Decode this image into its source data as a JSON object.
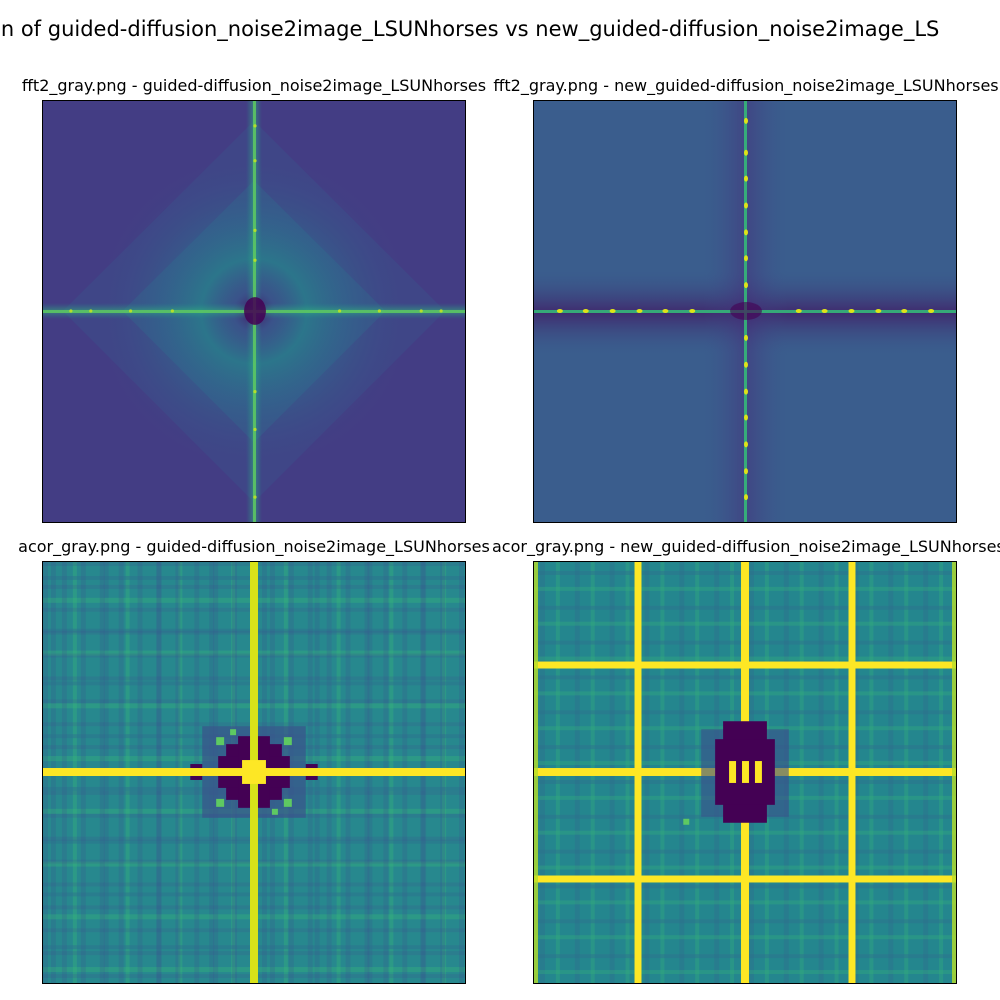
{
  "figure": {
    "suptitle": "on of guided-diffusion_noise2image_LSUNhorses vs new_guided-diffusion_noise2image_LS"
  },
  "colors": {
    "viridis_dark": "#440154",
    "viridis_blue": "#3b528b",
    "viridis_teal": "#21918c",
    "viridis_green": "#5ec962",
    "viridis_yellow": "#fde725"
  },
  "chart_data": [
    {
      "type": "heatmap",
      "title": "fft2_gray.png - guided-diffusion_noise2image_LSUNhorses",
      "colormap": "viridis",
      "axes": "off",
      "pattern": "frequency-spectrum",
      "features": [
        "bright vertical line through center",
        "bright horizontal line through center",
        "dark center",
        "diffuse ring around center"
      ]
    },
    {
      "type": "heatmap",
      "title": "fft2_gray.png - new_guided-diffusion_noise2image_LSUNhorses",
      "colormap": "viridis",
      "axes": "off",
      "pattern": "frequency-spectrum",
      "features": [
        "periodic bright dots along vertical center line",
        "periodic bright dots along horizontal center line",
        "dark horizontal band through center"
      ]
    },
    {
      "type": "heatmap",
      "title": "acor_gray.png - guided-diffusion_noise2image_LSUNhorses",
      "colormap": "viridis",
      "axes": "off",
      "pattern": "autocorrelation",
      "features": [
        "yellow cross through center",
        "dark blob around center",
        "grid texture"
      ]
    },
    {
      "type": "heatmap",
      "title": "acor_gray.png - new_guided-diffusion_noise2image_LSUNhorses",
      "colormap": "viridis",
      "axes": "off",
      "pattern": "autocorrelation",
      "features": [
        "yellow periodic grid lines (3 vertical, 3 horizontal)",
        "dark blob around center",
        "grid texture"
      ]
    }
  ]
}
